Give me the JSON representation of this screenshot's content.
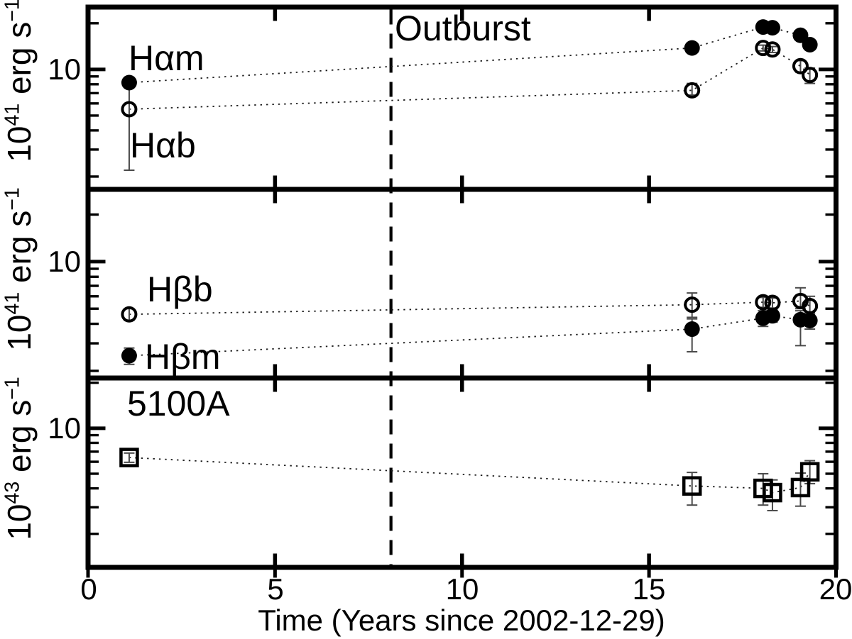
{
  "figure": {
    "background": "#ffffff",
    "ink_color": "#000000",
    "xlabel": "Time (Years since 2002-12-29)",
    "x_tick_labels": [
      "0",
      "5",
      "10",
      "15",
      "20"
    ],
    "y_major_tick_label": "10",
    "annotations": {
      "halpha_m": "Hαm",
      "halpha_b": "Hαb",
      "hbeta_b": "Hβb",
      "hbeta_m": "Hβm",
      "continuum": "5100A",
      "outburst": "Outburst"
    },
    "ylabels": [
      {
        "prefix": "10",
        "exp": "41",
        "unit": " erg s",
        "unit_exp": "−1"
      },
      {
        "prefix": "10",
        "exp": "41",
        "unit": " erg s",
        "unit_exp": "−1"
      },
      {
        "prefix": "10",
        "exp": "43",
        "unit": " erg s",
        "unit_exp": "−1"
      }
    ]
  },
  "chart_data": [
    {
      "type": "scatter",
      "panel": "Halpha",
      "ylabel": "10^41 erg s^-1",
      "yscale": "log",
      "xlim": [
        0,
        20
      ],
      "ylim": [
        1.65,
        25.5
      ],
      "x_major_ticks": [
        0,
        5,
        10,
        15,
        20
      ],
      "y_major_ticks": [
        10
      ],
      "y_minor_ticks": [
        2,
        3,
        4,
        5,
        6,
        7,
        8,
        9,
        20
      ],
      "outburst_x": 8.1,
      "series": [
        {
          "name": "Hαb",
          "marker": "circle-open",
          "x": [
            1.1,
            16.15,
            18.05,
            18.3,
            19.05,
            19.3
          ],
          "y": [
            5.5,
            7.3,
            13.8,
            13.5,
            10.5,
            9.2
          ],
          "err_lo": [
            3.3,
            0.5,
            0.6,
            0.6,
            0.9,
            1.1
          ],
          "err_hi": [
            2.7,
            0.8,
            0.6,
            0.6,
            0.9,
            1.0
          ]
        },
        {
          "name": "Hαm",
          "marker": "circle-filled",
          "x": [
            1.1,
            16.15,
            18.05,
            18.3,
            19.05,
            19.3
          ],
          "y": [
            8.2,
            13.8,
            18.9,
            18.7,
            16.7,
            14.5
          ],
          "err_lo": [
            0.4,
            0.4,
            0.5,
            0.5,
            0.5,
            0.8
          ],
          "err_hi": [
            0.4,
            0.4,
            0.5,
            0.5,
            0.5,
            0.8
          ]
        }
      ]
    },
    {
      "type": "scatter",
      "panel": "Hbeta",
      "ylabel": "10^41 erg s^-1",
      "yscale": "log",
      "xlim": [
        0,
        20
      ],
      "ylim": [
        1.8,
        29
      ],
      "x_major_ticks": [
        0,
        5,
        10,
        15,
        20
      ],
      "y_major_ticks": [
        10
      ],
      "y_minor_ticks": [
        2,
        3,
        4,
        5,
        6,
        7,
        8,
        9,
        20
      ],
      "outburst_x": 8.1,
      "series": [
        {
          "name": "Hβb",
          "marker": "circle-open",
          "x": [
            1.1,
            16.15,
            18.05,
            18.3,
            19.05,
            19.3
          ],
          "y": [
            4.6,
            5.3,
            5.5,
            5.45,
            5.6,
            5.2
          ],
          "err_lo": [
            0.4,
            0.9,
            0.4,
            0.4,
            0.6,
            0.6
          ],
          "err_hi": [
            0.4,
            1.0,
            0.4,
            0.4,
            1.2,
            0.8
          ]
        },
        {
          "name": "Hβm",
          "marker": "circle-filled",
          "x": [
            1.1,
            16.15,
            18.05,
            18.3,
            19.05,
            19.3
          ],
          "y": [
            2.5,
            3.7,
            4.35,
            4.5,
            4.25,
            4.2
          ],
          "err_lo": [
            0.3,
            1.05,
            0.5,
            0.4,
            1.35,
            0.5
          ],
          "err_hi": [
            0.3,
            0.6,
            0.5,
            0.4,
            0.6,
            0.5
          ]
        }
      ]
    },
    {
      "type": "scatter",
      "panel": "5100A continuum",
      "ylabel": "10^43 erg s^-1",
      "yscale": "log",
      "xlim": [
        0,
        20
      ],
      "ylim": [
        1.2,
        21.5
      ],
      "x_major_ticks": [
        0,
        5,
        10,
        15,
        20
      ],
      "y_major_ticks": [
        10
      ],
      "y_minor_ticks": [
        2,
        3,
        4,
        5,
        6,
        7,
        8,
        9,
        20
      ],
      "outburst_x": 8.1,
      "series": [
        {
          "name": "5100A",
          "marker": "square-open",
          "x": [
            1.1,
            16.15,
            18.05,
            18.3,
            19.05,
            19.3
          ],
          "y": [
            6.4,
            4.15,
            4.0,
            3.75,
            4.05,
            5.15
          ],
          "err_lo": [
            0.45,
            1.05,
            0.9,
            0.9,
            1.0,
            0.85
          ],
          "err_hi": [
            0.45,
            0.95,
            1.0,
            0.8,
            1.0,
            0.95
          ]
        }
      ]
    }
  ]
}
